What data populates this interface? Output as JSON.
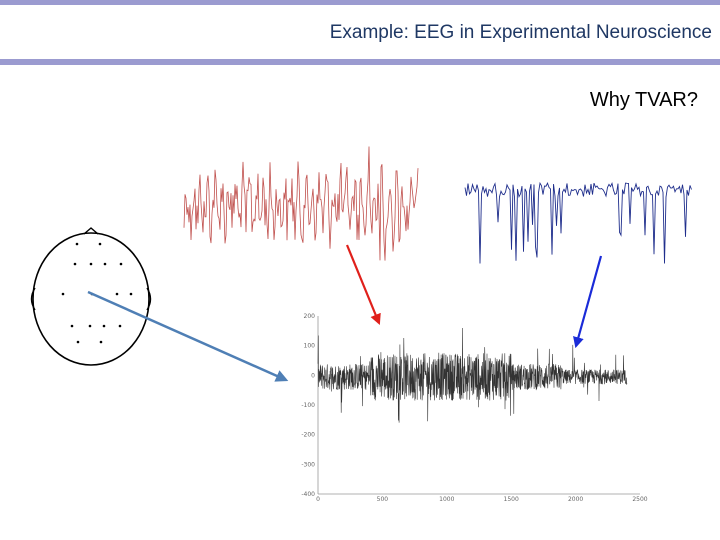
{
  "slide": {
    "title": "Example: EEG in Experimental Neuroscience",
    "subtitle": "Why TVAR?"
  },
  "colors": {
    "accent_bar": "#9b9bd0",
    "title_text": "#1f3864",
    "red_trace": "#c0504d",
    "blue_trace": "#1f2e8c",
    "red_arrow": "#e0201b",
    "blue_arrow": "#1a2bd8",
    "electrode_arrow": "#4f7fb5",
    "main_trace": "#333333"
  },
  "chart_data": {
    "type": "line",
    "x_ticks": [
      "0",
      "500",
      "1000",
      "1500",
      "2000",
      "2500"
    ],
    "y_ticks": [
      "200",
      "100",
      "0",
      "-100",
      "-200",
      "-300",
      "-400"
    ],
    "xlim": [
      0,
      2500
    ],
    "ylim": [
      -400,
      200
    ],
    "title": "",
    "xlabel": "",
    "ylabel": ""
  }
}
